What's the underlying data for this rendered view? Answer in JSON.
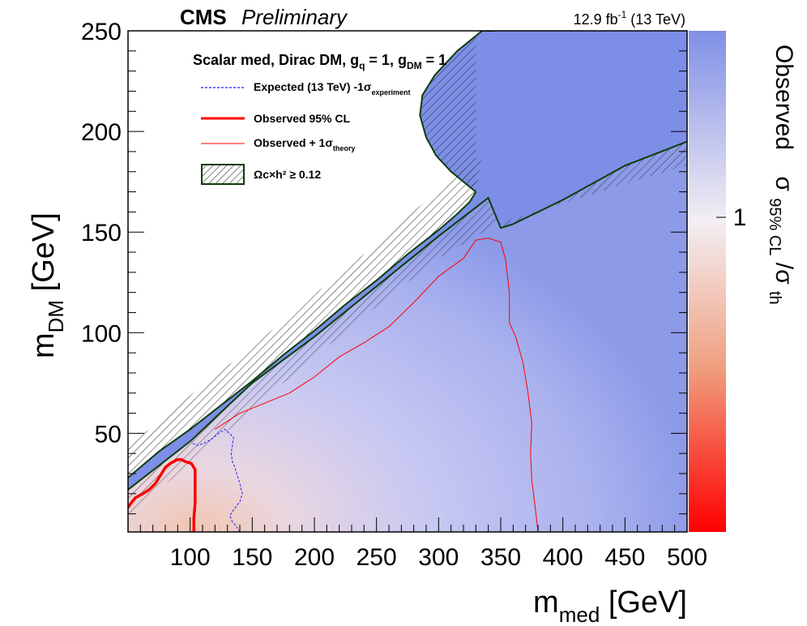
{
  "header": {
    "experiment": "CMS",
    "status": "Preliminary",
    "lumi": "12.9 fb",
    "lumi_exp": "-1",
    "energy": " (13 TeV)"
  },
  "chart_data": {
    "type": "heatmap",
    "title": "Scalar med, Dirac DM, g_q = 1, g_DM = 1",
    "title_parts": {
      "model": "Scalar med, Dirac DM, g",
      "q_sub": "q",
      "eq1": " = 1, g",
      "dm_sub": "DM",
      "eq2": " = 1"
    },
    "xlabel": "m_med [GeV]",
    "xlabel_parts": {
      "main": "m",
      "sub": "med",
      "unit": " [GeV]"
    },
    "ylabel": "m_DM [GeV]",
    "ylabel_parts": {
      "main": "m",
      "sub": "DM",
      "unit": " [GeV]"
    },
    "zlabel": "Observed  σ95% CL/σth",
    "zlabel_parts": {
      "obs": "Observed",
      "sigma1": "σ",
      "sub1": "95% CL",
      "slash": "/σ",
      "sub2": "th"
    },
    "xlim": [
      50,
      500
    ],
    "ylim": [
      1,
      250
    ],
    "zscale": "log",
    "z_tick_label": "1",
    "x_ticks": [
      100,
      150,
      200,
      250,
      300,
      350,
      400,
      450,
      500
    ],
    "x_tick_labels": [
      "100",
      "150",
      "200",
      "250",
      "300",
      "350",
      "400",
      "450",
      "500"
    ],
    "y_ticks": [
      50,
      100,
      150,
      200,
      250
    ],
    "y_tick_labels": [
      "50",
      "100",
      "150",
      "200",
      "250"
    ],
    "legend": {
      "placement": "top-left",
      "entries": [
        {
          "label": "Expected (13 TeV) -1σ",
          "sub": "experiment",
          "style": "dashed",
          "color": "#1a1aff"
        },
        {
          "label": "Observed 95% CL",
          "sub": "",
          "style": "thick",
          "color": "#ff0000"
        },
        {
          "label": "Observed + 1σ",
          "sub": "theory",
          "style": "thin",
          "color": "#ff0000"
        },
        {
          "label": "Ωc×h² ≥ 0.12",
          "sub": "",
          "style": "hatched",
          "color": "#0a3d0a"
        }
      ]
    },
    "series": [
      {
        "name": "Expected (13 TeV) -1σexperiment",
        "x": [
          102,
          106,
          111,
          117,
          123,
          128,
          135,
          134,
          133,
          134,
          136,
          138,
          140,
          142,
          140,
          135,
          132,
          134,
          137,
          139,
          140
        ],
        "y": [
          45,
          44,
          45,
          47,
          50,
          52,
          48,
          44,
          40,
          36,
          33,
          29,
          25,
          20,
          16,
          12,
          9,
          6,
          4,
          2,
          1
        ]
      },
      {
        "name": "Observed 95% CL",
        "x": [
          50,
          52,
          56,
          62,
          67,
          72,
          76,
          80,
          84,
          87,
          90,
          93,
          96,
          101,
          104,
          104,
          104,
          103,
          103,
          103
        ],
        "y": [
          13,
          15,
          18,
          20,
          22,
          25,
          29,
          33,
          35,
          36,
          37,
          37,
          36,
          35,
          32,
          25,
          15,
          8,
          4,
          1
        ]
      },
      {
        "name": "Observed + 1σtheory",
        "x": [
          120,
          140,
          160,
          180,
          200,
          220,
          240,
          260,
          280,
          300,
          320,
          330,
          340,
          350,
          354,
          357,
          357,
          362,
          368,
          372,
          375,
          374,
          375,
          378,
          380
        ],
        "y": [
          52,
          60,
          65,
          70,
          78,
          88,
          95,
          103,
          115,
          128,
          137,
          146,
          147,
          145,
          136,
          120,
          105,
          98,
          85,
          70,
          55,
          40,
          27,
          12,
          1
        ]
      },
      {
        "name": "Ωc×h² ≥ 0.12 (upper band, lower boundary)",
        "x": [
          50,
          75,
          100,
          125,
          150,
          175,
          200,
          225,
          250,
          275,
          300,
          315,
          325,
          330
        ],
        "y": [
          28,
          41,
          52,
          64,
          76,
          89,
          101,
          114,
          126,
          139,
          151,
          159,
          165,
          170
        ]
      },
      {
        "name": "Ωc×h² ≥ 0.12 (upper band, upper boundary)",
        "x": [
          50,
          80,
          110,
          150,
          200,
          250,
          300,
          320,
          335
        ],
        "y": [
          44,
          58,
          74,
          93,
          119,
          144,
          171,
          181,
          188
        ]
      },
      {
        "name": "Ωc×h² ≥ 0.12 (upper band, cap)",
        "x": [
          330,
          320,
          310,
          298,
          290,
          285,
          287,
          297,
          315,
          335,
          345
        ],
        "y": [
          170,
          175,
          180,
          188,
          197,
          208,
          218,
          228,
          240,
          250,
          250
        ]
      },
      {
        "name": "Ωc×h² ≥ 0.12 (lower band, upper boundary)",
        "x": [
          50,
          100,
          150,
          200,
          250,
          300,
          340,
          350,
          360,
          400,
          450,
          500
        ],
        "y": [
          22,
          46,
          75,
          98,
          123,
          148,
          167,
          152,
          154,
          166,
          183,
          195
        ]
      },
      {
        "name": "Ωc×h² ≥ 0.12 (lower band, lower boundary)",
        "x": [
          50,
          100,
          150,
          200,
          250,
          300,
          350,
          400,
          450,
          500
        ],
        "y": [
          9,
          35,
          62,
          88,
          113,
          137,
          155,
          164,
          174,
          183
        ]
      }
    ],
    "colors": {
      "plot_fill": "#7d8ee6",
      "region_light": "#c7cbf3",
      "region_pink": "#efd6d9",
      "region_peach": "#f2c3ad",
      "palette_bottom": "#ff0000",
      "palette_mid": "#f5f0f5",
      "palette_top": "#7f8fe6",
      "hatch_line": "#0a3d0a",
      "hatch_hatch": "#222222"
    }
  }
}
